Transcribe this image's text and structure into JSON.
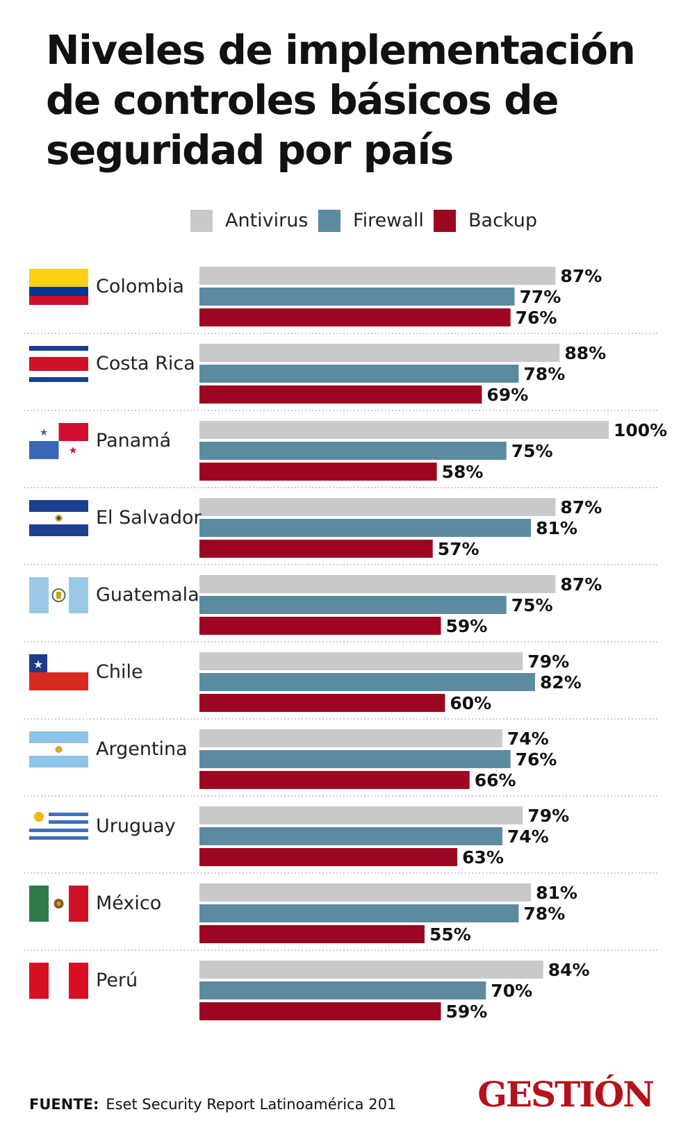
{
  "header": {
    "title": "Niveles de implementación de controles básicos de seguridad por país"
  },
  "legend": [
    {
      "label": "Antivirus",
      "color": "#c8c9cb"
    },
    {
      "label": "Firewall",
      "color": "#5b8aa1"
    },
    {
      "label": "Backup",
      "color": "#9c0620"
    }
  ],
  "chart_data": {
    "type": "bar",
    "orientation": "horizontal",
    "value_suffix": "%",
    "xlim": [
      0,
      100
    ],
    "grid": false,
    "legend_position": "top",
    "categories": [
      "Colombia",
      "Costa Rica",
      "Panamá",
      "El Salvador",
      "Guatemala",
      "Chile",
      "Argentina",
      "Uruguay",
      "México",
      "Perú"
    ],
    "series": [
      {
        "name": "Antivirus",
        "color": "#c8c9cb",
        "values": [
          87,
          88,
          100,
          87,
          87,
          79,
          74,
          79,
          81,
          84
        ]
      },
      {
        "name": "Firewall",
        "color": "#5b8aa1",
        "values": [
          77,
          78,
          75,
          81,
          75,
          82,
          76,
          74,
          78,
          70
        ]
      },
      {
        "name": "Backup",
        "color": "#9c0620",
        "values": [
          76,
          69,
          58,
          57,
          59,
          60,
          66,
          63,
          55,
          59
        ]
      }
    ],
    "flags": [
      "colombia-flag-icon",
      "costa-rica-flag-icon",
      "panama-flag-icon",
      "el-salvador-flag-icon",
      "guatemala-flag-icon",
      "chile-flag-icon",
      "argentina-flag-icon",
      "uruguay-flag-icon",
      "mexico-flag-icon",
      "peru-flag-icon"
    ]
  },
  "footer": {
    "source_label": "FUENTE:",
    "source_text": "Eset Security Report Latinoamérica 201",
    "brand": "GESTIÓN"
  }
}
